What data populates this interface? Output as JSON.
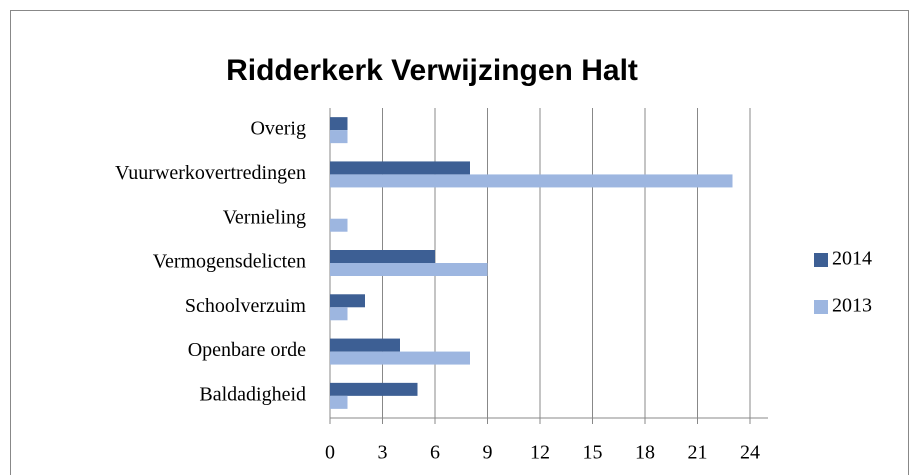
{
  "chart_data": {
    "type": "bar",
    "orientation": "horizontal",
    "title": "Ridderkerk Verwijzingen Halt",
    "categories": [
      "Overig",
      "Vuurwerkovertredingen",
      "Vernieling",
      "Vermogensdelicten",
      "Schoolverzuim",
      "Openbare orde",
      "Baldadigheid"
    ],
    "series": [
      {
        "name": "2014",
        "color": "#3d5f94",
        "values": [
          1,
          8,
          0,
          6,
          2,
          4,
          5
        ]
      },
      {
        "name": "2013",
        "color": "#9db6e0",
        "values": [
          1,
          23,
          1,
          9,
          1,
          8,
          1
        ]
      }
    ],
    "xlim": [
      0,
      24
    ],
    "xticks": [
      0,
      3,
      6,
      9,
      12,
      15,
      18,
      21,
      24
    ],
    "grid": true,
    "legend": "right"
  }
}
